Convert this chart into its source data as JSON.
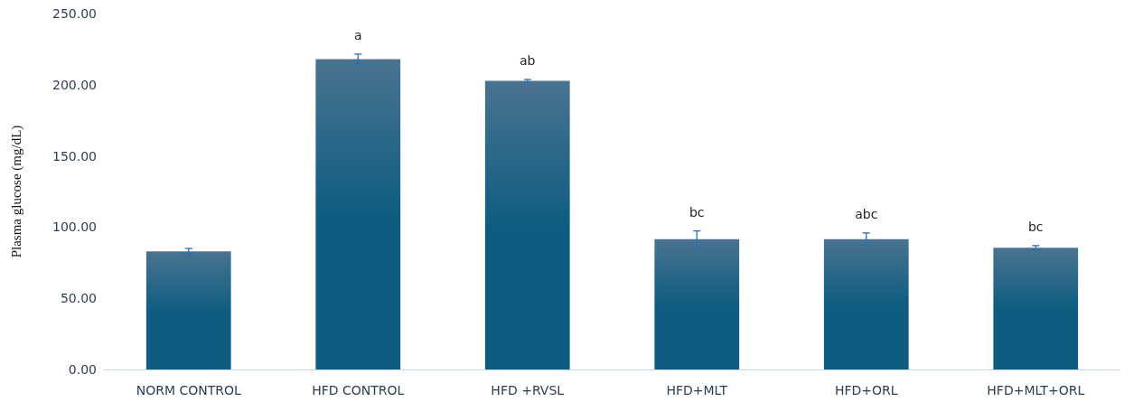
{
  "chart_data": {
    "type": "bar",
    "ylabel": "Plasma glucose (mg/dL)",
    "categories": [
      "NORM CONTROL",
      "HFD CONTROL",
      "HFD +RVSL",
      "HFD+MLT",
      "HFD+ORL",
      "HFD+MLT+ORL"
    ],
    "values": [
      83,
      218,
      202.7,
      91.6,
      91.6,
      85.5
    ],
    "errors": [
      2,
      3.5,
      1,
      5.7,
      4.3,
      1.5
    ],
    "color": "#0e5d80",
    "ylim": [
      0,
      250
    ],
    "yticks": [
      {
        "value": 0,
        "label": "0.00"
      },
      {
        "value": 50,
        "label": "50.00"
      },
      {
        "value": 100,
        "label": "100.00"
      },
      {
        "value": 150,
        "label": "150.00"
      },
      {
        "value": 200,
        "label": "200.00"
      },
      {
        "value": 250,
        "label": "250.00"
      }
    ],
    "grid": false,
    "value_labels": [
      null,
      "a",
      "ab",
      "bc",
      "abc",
      "bc"
    ]
  }
}
